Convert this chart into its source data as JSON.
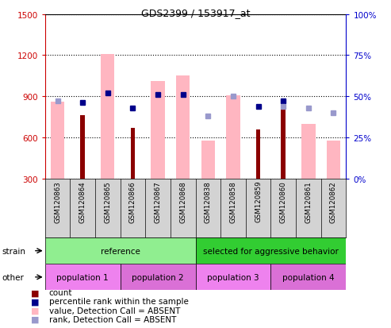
{
  "title": "GDS2399 / 153917_at",
  "samples": [
    "GSM120863",
    "GSM120864",
    "GSM120865",
    "GSM120866",
    "GSM120867",
    "GSM120868",
    "GSM120838",
    "GSM120858",
    "GSM120859",
    "GSM120860",
    "GSM120861",
    "GSM120862"
  ],
  "count_values": [
    null,
    760,
    null,
    670,
    null,
    null,
    null,
    null,
    660,
    800,
    null,
    null
  ],
  "value_absent": [
    860,
    null,
    1210,
    null,
    1010,
    1050,
    575,
    905,
    null,
    null,
    700,
    575
  ],
  "percentile_rank": [
    null,
    46,
    52,
    43,
    51,
    51,
    null,
    null,
    44,
    47,
    null,
    null
  ],
  "rank_absent": [
    47,
    null,
    null,
    null,
    null,
    null,
    38,
    50,
    null,
    44,
    43,
    40
  ],
  "ylim_left": [
    300,
    1500
  ],
  "ylim_right": [
    0,
    100
  ],
  "yticks_left": [
    300,
    600,
    900,
    1200,
    1500
  ],
  "yticks_right": [
    0,
    25,
    50,
    75,
    100
  ],
  "strain_groups": [
    {
      "label": "reference",
      "start": 0,
      "end": 6,
      "color": "#90ee90"
    },
    {
      "label": "selected for aggressive behavior",
      "start": 6,
      "end": 12,
      "color": "#32cd32"
    }
  ],
  "other_groups": [
    {
      "label": "population 1",
      "start": 0,
      "end": 3,
      "color": "#ee82ee"
    },
    {
      "label": "population 2",
      "start": 3,
      "end": 6,
      "color": "#da70d6"
    },
    {
      "label": "population 3",
      "start": 6,
      "end": 9,
      "color": "#ee82ee"
    },
    {
      "label": "population 4",
      "start": 9,
      "end": 12,
      "color": "#da70d6"
    }
  ],
  "bar_color_count": "#8b0000",
  "bar_color_absent": "#ffb6c1",
  "dot_color_percentile": "#00008b",
  "dot_color_rank_absent": "#9999cc",
  "color_left_axis": "#cc0000",
  "color_right_axis": "#0000cc"
}
